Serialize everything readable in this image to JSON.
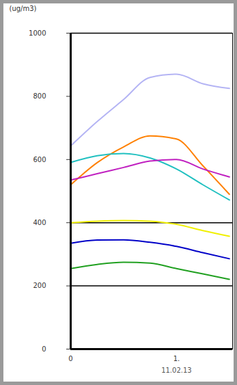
{
  "chart_data": {
    "type": "line",
    "y_label": "(ug/m3)",
    "x": [
      0,
      0.25,
      0.5,
      0.75,
      1,
      1.25,
      1.5
    ],
    "xlim": [
      0,
      1.53
    ],
    "xticks": [
      0,
      {
        "value": 1,
        "label": "1."
      }
    ],
    "ylim": [
      0,
      1000
    ],
    "yticks": [
      0,
      200,
      400,
      600,
      800,
      1000
    ],
    "hlines": [
      400,
      200
    ],
    "annotations": [
      {
        "text": "11.02.13",
        "x": 1
      }
    ],
    "series": [
      {
        "color": "#b4b4f4",
        "values": [
          643,
          720,
          790,
          860,
          870,
          840,
          825
        ]
      },
      {
        "color": "#ff8000",
        "values": [
          520,
          590,
          640,
          675,
          665,
          580,
          490
        ]
      },
      {
        "color": "#20c0c0",
        "values": [
          591,
          612,
          619,
          605,
          570,
          520,
          472
        ]
      },
      {
        "color": "#c020c0",
        "values": [
          535,
          555,
          575,
          595,
          600,
          570,
          545
        ]
      },
      {
        "color": "#f0f000",
        "values": [
          400,
          405,
          407,
          405,
          395,
          375,
          357
        ]
      },
      {
        "color": "#0000c8",
        "values": [
          335,
          345,
          346,
          338,
          325,
          305,
          286
        ]
      },
      {
        "color": "#20a020",
        "values": [
          255,
          268,
          275,
          272,
          255,
          238,
          221
        ]
      }
    ]
  }
}
